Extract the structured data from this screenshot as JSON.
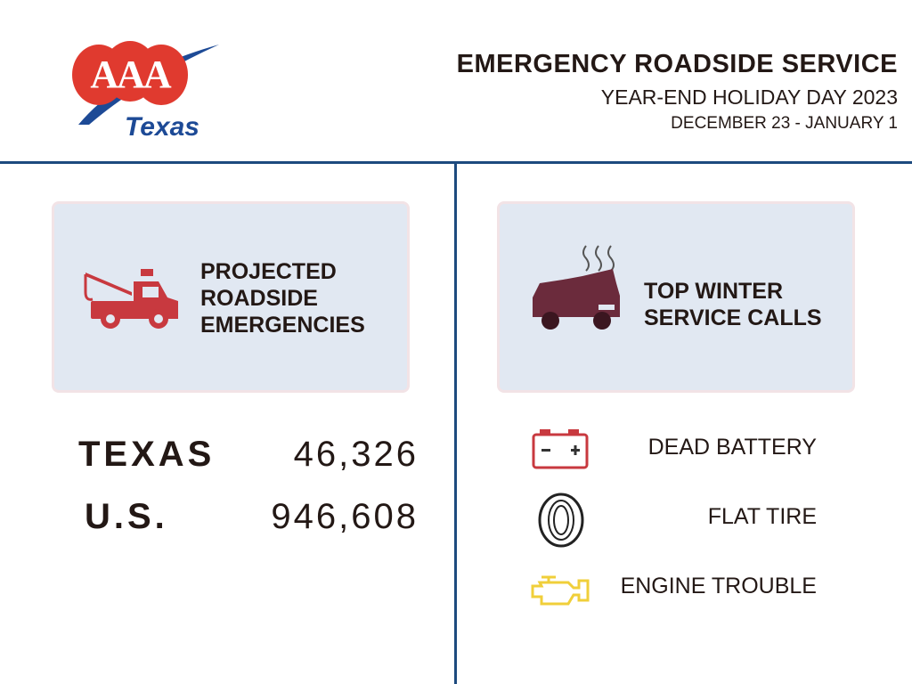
{
  "logo": {
    "mark": "AAA",
    "region": "Texas"
  },
  "header": {
    "title": "EMERGENCY ROADSIDE SERVICE",
    "subtitle": "YEAR-END HOLIDAY DAY 2023",
    "dates": "DECEMBER 23 - JANUARY 1"
  },
  "projections": {
    "title_lines": [
      "PROJECTED",
      "ROADSIDE",
      "EMERGENCIES"
    ],
    "rows": [
      {
        "label": "TEXAS",
        "value": "46,326"
      },
      {
        "label": "U.S.",
        "value": "946,608"
      }
    ]
  },
  "service_calls": {
    "title_lines": [
      "TOP WINTER",
      "SERVICE CALLS"
    ],
    "items": [
      "DEAD BATTERY",
      "FLAT TIRE",
      "ENGINE TROUBLE"
    ]
  }
}
